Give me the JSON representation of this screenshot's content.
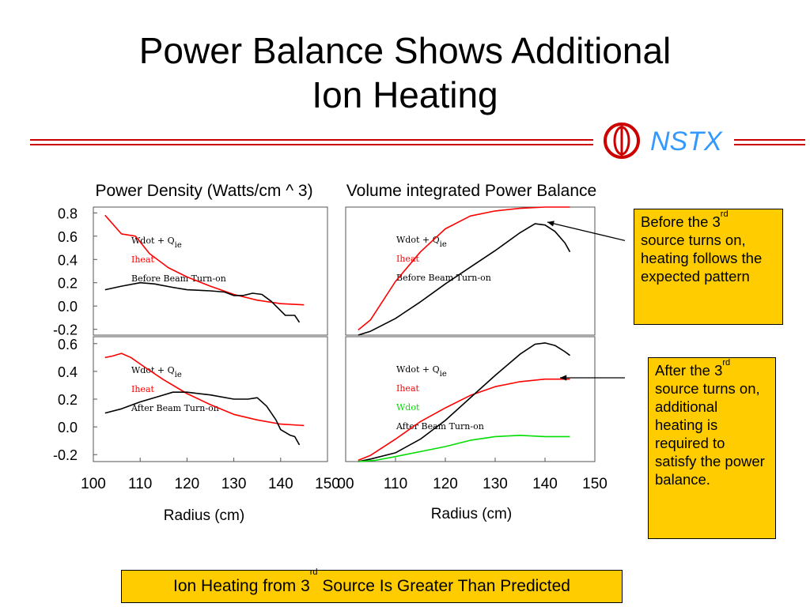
{
  "slide": {
    "title_line1": "Power Balance Shows Additional",
    "title_line2": "Ion Heating",
    "logo_text": "NSTX"
  },
  "callouts": {
    "before": {
      "text_a": "Before the 3",
      "sup": "rd",
      "text_b": "source turns on, heating follows the expected pattern"
    },
    "after": {
      "text_a": "After the 3",
      "sup": "rd",
      "text_b": "source turns on, additional heating is required to satisfy the power balance."
    }
  },
  "banner": {
    "text_a": "Ion Heating from 3",
    "sup": "rd",
    "text_b": " Source Is Greater Than Predicted"
  },
  "colors": {
    "callout_bg": "#ffcc00",
    "heat_line": "#ff0000",
    "wdot_line": "#000000",
    "green_line": "#00dd00",
    "logo_red": "#cc0000",
    "logo_blue": "#3399ff"
  },
  "chart_data": [
    {
      "id": "left",
      "type": "line",
      "title": "Power Density (Watts/cm ^ 3)",
      "xlabel": "Radius (cm)",
      "xlim": [
        100,
        150
      ],
      "xticks": [
        "100",
        "110",
        "120",
        "130",
        "140",
        "150"
      ],
      "panels": [
        {
          "id": "before",
          "ylim": [
            -0.25,
            0.85
          ],
          "yticks": [
            {
              "v": 0.8,
              "label": "0.8"
            },
            {
              "v": 0.6,
              "label": "0.6"
            },
            {
              "v": 0.4,
              "label": "0.4"
            },
            {
              "v": 0.2,
              "label": "0.2"
            },
            {
              "v": 0.0,
              "label": "0.0"
            },
            {
              "v": -0.2,
              "label": "-0.2"
            }
          ],
          "legend": [
            {
              "text": "Wdot + Q",
              "sub": "ie",
              "color": "#000000"
            },
            {
              "text": "Iheat",
              "color": "#ff0000"
            },
            {
              "text": "Before Beam Turn-on",
              "color": "#000000"
            }
          ],
          "series": [
            {
              "name": "Iheat",
              "color": "#ff0000",
              "points": [
                [
                  102.5,
                  0.78
                ],
                [
                  106,
                  0.62
                ],
                [
                  109,
                  0.6
                ],
                [
                  112,
                  0.45
                ],
                [
                  116,
                  0.33
                ],
                [
                  120,
                  0.25
                ],
                [
                  125,
                  0.17
                ],
                [
                  130,
                  0.1
                ],
                [
                  135,
                  0.05
                ],
                [
                  140,
                  0.02
                ],
                [
                  145,
                  0.01
                ]
              ]
            },
            {
              "name": "Wdot + Qie",
              "color": "#000000",
              "points": [
                [
                  102.5,
                  0.14
                ],
                [
                  106,
                  0.17
                ],
                [
                  110,
                  0.2
                ],
                [
                  113,
                  0.19
                ],
                [
                  117,
                  0.16
                ],
                [
                  120,
                  0.14
                ],
                [
                  125,
                  0.13
                ],
                [
                  128,
                  0.12
                ],
                [
                  130,
                  0.09
                ],
                [
                  132,
                  0.09
                ],
                [
                  134,
                  0.11
                ],
                [
                  136,
                  0.1
                ],
                [
                  138,
                  0.04
                ],
                [
                  140,
                  -0.04
                ],
                [
                  141,
                  -0.08
                ],
                [
                  143,
                  -0.08
                ],
                [
                  144,
                  -0.14
                ]
              ]
            }
          ]
        },
        {
          "id": "after",
          "ylim": [
            -0.25,
            0.65
          ],
          "yticks": [
            {
              "v": 0.6,
              "label": "0.6"
            },
            {
              "v": 0.4,
              "label": "0.4"
            },
            {
              "v": 0.2,
              "label": "0.2"
            },
            {
              "v": 0.0,
              "label": "0.0"
            },
            {
              "v": -0.2,
              "label": "-0.2"
            }
          ],
          "legend": [
            {
              "text": "Wdot + Q",
              "sub": "ie",
              "color": "#000000"
            },
            {
              "text": "Iheat",
              "color": "#ff0000"
            },
            {
              "text": "After Beam Turn-on",
              "color": "#000000"
            }
          ],
          "series": [
            {
              "name": "Iheat",
              "color": "#ff0000",
              "points": [
                [
                  102.5,
                  0.5
                ],
                [
                  104,
                  0.51
                ],
                [
                  106,
                  0.53
                ],
                [
                  108,
                  0.5
                ],
                [
                  111,
                  0.43
                ],
                [
                  115,
                  0.34
                ],
                [
                  120,
                  0.24
                ],
                [
                  125,
                  0.16
                ],
                [
                  130,
                  0.09
                ],
                [
                  135,
                  0.05
                ],
                [
                  140,
                  0.02
                ],
                [
                  145,
                  0.01
                ]
              ]
            },
            {
              "name": "Wdot + Qie",
              "color": "#000000",
              "points": [
                [
                  102.5,
                  0.1
                ],
                [
                  106,
                  0.13
                ],
                [
                  110,
                  0.18
                ],
                [
                  114,
                  0.22
                ],
                [
                  117,
                  0.25
                ],
                [
                  120,
                  0.25
                ],
                [
                  125,
                  0.23
                ],
                [
                  130,
                  0.2
                ],
                [
                  133,
                  0.2
                ],
                [
                  135,
                  0.21
                ],
                [
                  137,
                  0.15
                ],
                [
                  139,
                  0.05
                ],
                [
                  140,
                  -0.02
                ],
                [
                  142,
                  -0.06
                ],
                [
                  143,
                  -0.07
                ],
                [
                  144,
                  -0.13
                ]
              ]
            }
          ]
        }
      ]
    },
    {
      "id": "right",
      "type": "line",
      "title": "Volume integrated Power Balance",
      "xlabel": "Radius (cm)",
      "xlim": [
        100,
        150
      ],
      "xticks": [
        "00",
        "110",
        "120",
        "130",
        "140",
        "150"
      ],
      "panels": [
        {
          "id": "before",
          "ylim": [
            0,
            1
          ],
          "yticks": [],
          "legend": [
            {
              "text": "Wdot + Q",
              "sub": "ie",
              "color": "#000000"
            },
            {
              "text": "Iheat",
              "color": "#ff0000"
            },
            {
              "text": "Before Beam Turn-on",
              "color": "#000000"
            }
          ],
          "series": [
            {
              "name": "Iheat",
              "color": "#ff0000",
              "points": [
                [
                  102.5,
                  0.04
                ],
                [
                  105,
                  0.12
                ],
                [
                  110,
                  0.42
                ],
                [
                  115,
                  0.65
                ],
                [
                  120,
                  0.83
                ],
                [
                  125,
                  0.93
                ],
                [
                  130,
                  0.97
                ],
                [
                  135,
                  0.99
                ],
                [
                  140,
                  1.0
                ],
                [
                  145,
                  1.0
                ]
              ]
            },
            {
              "name": "Wdot + Qie",
              "color": "#000000",
              "points": [
                [
                  102.5,
                  0.0
                ],
                [
                  105,
                  0.03
                ],
                [
                  110,
                  0.13
                ],
                [
                  115,
                  0.26
                ],
                [
                  120,
                  0.4
                ],
                [
                  125,
                  0.53
                ],
                [
                  130,
                  0.66
                ],
                [
                  135,
                  0.8
                ],
                [
                  138,
                  0.87
                ],
                [
                  140,
                  0.86
                ],
                [
                  142,
                  0.81
                ],
                [
                  144,
                  0.72
                ],
                [
                  145,
                  0.65
                ]
              ]
            }
          ]
        },
        {
          "id": "after",
          "ylim": [
            0,
            1
          ],
          "yticks": [],
          "legend": [
            {
              "text": "Wdot + Q",
              "sub": "ie",
              "color": "#000000"
            },
            {
              "text": "Iheat",
              "color": "#ff0000"
            },
            {
              "text": "Wdot",
              "color": "#00dd00"
            },
            {
              "text": "After Beam Turn-on",
              "color": "#000000"
            }
          ],
          "series": [
            {
              "name": "Iheat",
              "color": "#ff0000",
              "points": [
                [
                  102.5,
                  0.01
                ],
                [
                  105,
                  0.05
                ],
                [
                  110,
                  0.18
                ],
                [
                  115,
                  0.32
                ],
                [
                  120,
                  0.43
                ],
                [
                  125,
                  0.53
                ],
                [
                  130,
                  0.6
                ],
                [
                  135,
                  0.64
                ],
                [
                  140,
                  0.66
                ],
                [
                  145,
                  0.66
                ]
              ]
            },
            {
              "name": "Wdot + Qie",
              "color": "#000000",
              "points": [
                [
                  102.5,
                  0.0
                ],
                [
                  105,
                  0.02
                ],
                [
                  110,
                  0.07
                ],
                [
                  115,
                  0.18
                ],
                [
                  120,
                  0.33
                ],
                [
                  125,
                  0.51
                ],
                [
                  130,
                  0.69
                ],
                [
                  135,
                  0.86
                ],
                [
                  138,
                  0.94
                ],
                [
                  140,
                  0.95
                ],
                [
                  142,
                  0.93
                ],
                [
                  144,
                  0.88
                ],
                [
                  145,
                  0.85
                ]
              ]
            },
            {
              "name": "Wdot",
              "color": "#00dd00",
              "points": [
                [
                  102.5,
                  0.0
                ],
                [
                  106,
                  0.01
                ],
                [
                  110,
                  0.04
                ],
                [
                  115,
                  0.08
                ],
                [
                  120,
                  0.12
                ],
                [
                  125,
                  0.17
                ],
                [
                  130,
                  0.2
                ],
                [
                  135,
                  0.21
                ],
                [
                  140,
                  0.2
                ],
                [
                  145,
                  0.2
                ]
              ]
            }
          ]
        }
      ]
    }
  ]
}
